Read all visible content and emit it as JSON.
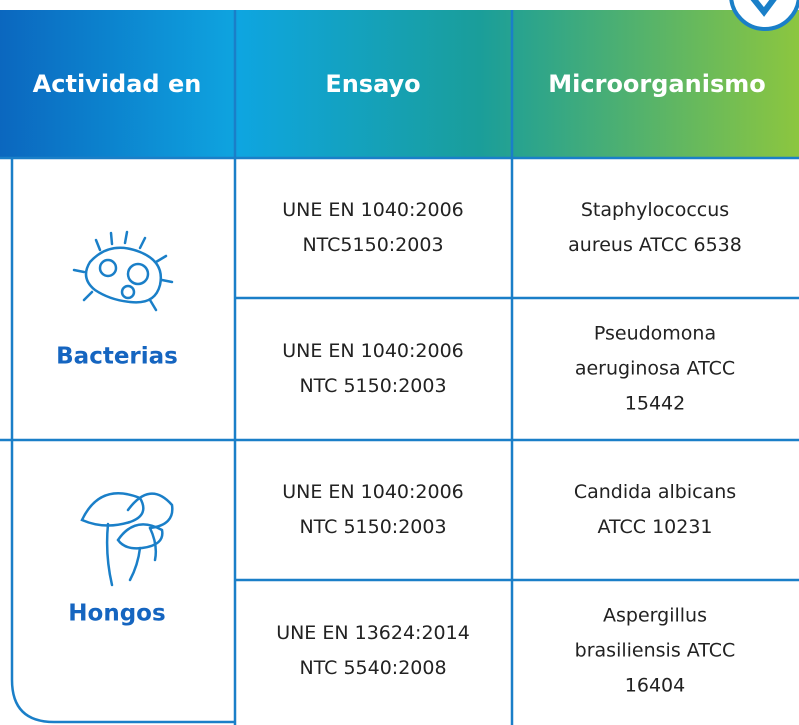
{
  "header": {
    "columns": [
      "Actividad en",
      "Ensayo",
      "Microorganismo"
    ]
  },
  "groups": [
    {
      "label": "Bacterias",
      "rows": [
        {
          "ensayo": [
            "UNE EN 1040:2006",
            "NTC5150:2003"
          ],
          "microorganismo": [
            "Staphylococcus",
            "aureus ATCC 6538"
          ]
        },
        {
          "ensayo": [
            "UNE EN 1040:2006",
            "NTC 5150:2003"
          ],
          "microorganismo": [
            "Pseudomona",
            "aeruginosa ATCC",
            "15442"
          ]
        }
      ]
    },
    {
      "label": "Hongos",
      "rows": [
        {
          "ensayo": [
            "UNE EN 1040:2006",
            "NTC 5150:2003"
          ],
          "microorganismo": [
            "Candida albicans",
            "ATCC 10231"
          ]
        },
        {
          "ensayo": [
            "UNE EN 13624:2014",
            "NTC 5540:2008"
          ],
          "microorganismo": [
            "Aspergillus",
            "brasiliensis ATCC",
            "16404"
          ]
        }
      ]
    }
  ]
}
